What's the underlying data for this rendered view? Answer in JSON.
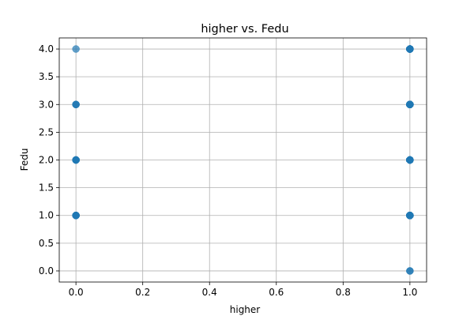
{
  "chart_data": {
    "type": "scatter",
    "title": "higher vs. Fedu",
    "xlabel": "higher",
    "ylabel": "Fedu",
    "xlim": [
      -0.05,
      1.05
    ],
    "ylim": [
      -0.2,
      4.2
    ],
    "xticks": [
      "0.0",
      "0.2",
      "0.4",
      "0.6",
      "0.8",
      "1.0"
    ],
    "yticks": [
      "0.0",
      "0.5",
      "1.0",
      "1.5",
      "2.0",
      "2.5",
      "3.0",
      "3.5",
      "4.0"
    ],
    "grid": true,
    "marker_color": "#1f77b4",
    "points": [
      {
        "x": 0,
        "y": 1,
        "count": 6
      },
      {
        "x": 0,
        "y": 2,
        "count": 6
      },
      {
        "x": 0,
        "y": 3,
        "count": 3
      },
      {
        "x": 0,
        "y": 4,
        "count": 1
      },
      {
        "x": 1,
        "y": 0,
        "count": 2
      },
      {
        "x": 1,
        "y": 1,
        "count": 30
      },
      {
        "x": 1,
        "y": 2,
        "count": 30
      },
      {
        "x": 1,
        "y": 3,
        "count": 30
      },
      {
        "x": 1,
        "y": 4,
        "count": 30
      }
    ]
  }
}
